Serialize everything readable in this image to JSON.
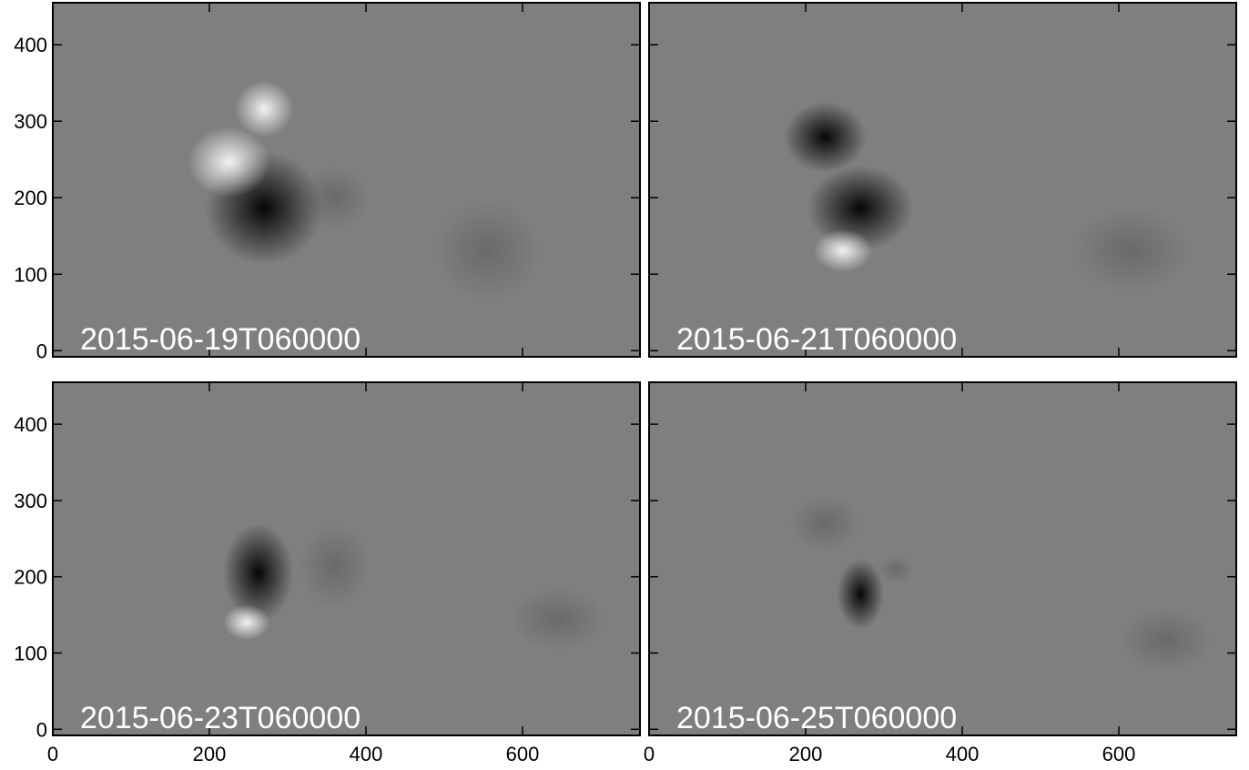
{
  "chart_data": [
    {
      "type": "image",
      "annotation": "2015-06-19T060000",
      "xlim": [
        0,
        750
      ],
      "ylim": [
        -8,
        455
      ],
      "xticks": [
        0,
        200,
        400,
        600
      ],
      "yticks": [
        0,
        100,
        200,
        300,
        400
      ]
    },
    {
      "type": "image",
      "annotation": "2015-06-21T060000",
      "xlim": [
        0,
        750
      ],
      "ylim": [
        -8,
        455
      ],
      "xticks": [
        0,
        200,
        400,
        600
      ],
      "yticks": [
        0,
        100,
        200,
        300,
        400
      ]
    },
    {
      "type": "image",
      "annotation": "2015-06-23T060000",
      "xlim": [
        0,
        750
      ],
      "ylim": [
        -8,
        455
      ],
      "xticks": [
        0,
        200,
        400,
        600
      ],
      "yticks": [
        0,
        100,
        200,
        300,
        400
      ]
    },
    {
      "type": "image",
      "annotation": "2015-06-25T060000",
      "xlim": [
        0,
        750
      ],
      "ylim": [
        -8,
        455
      ],
      "xticks": [
        0,
        200,
        400,
        600
      ],
      "yticks": [
        0,
        100,
        200,
        300,
        400
      ]
    }
  ]
}
